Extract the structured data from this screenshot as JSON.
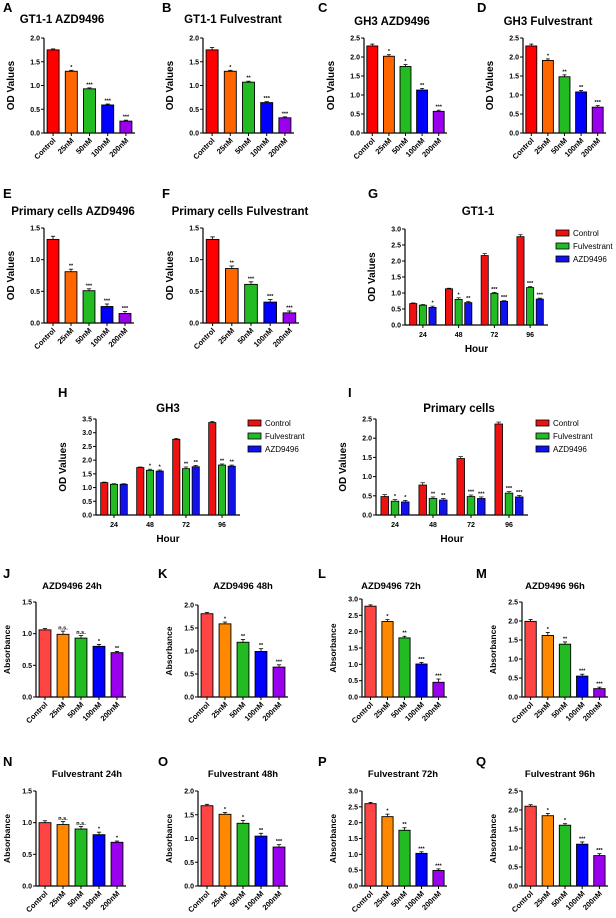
{
  "figure": {
    "colors": {
      "control": "#ff0000",
      "c25": "#ff6600",
      "c50": "#22bb22",
      "c100": "#0000ff",
      "c200": "#9900ee",
      "control_light": "#ff4444",
      "c25_light": "#ff8800",
      "legend_control": "#ee1111",
      "legend_fulvestrant": "#22bb22",
      "legend_azd": "#1111ee"
    }
  },
  "chart_data": [
    {
      "panel": "A",
      "type": "bar",
      "title": "GT1-1 AZD9496",
      "ylabel": "OD Values",
      "xlabel": "",
      "categories": [
        "Control",
        "25nM",
        "50nM",
        "100nM",
        "200nM"
      ],
      "values": [
        1.75,
        1.3,
        0.93,
        0.59,
        0.25
      ],
      "errors": [
        0.02,
        0.02,
        0.02,
        0.02,
        0.02
      ],
      "significance": [
        "",
        "*",
        "***",
        "***",
        "***"
      ],
      "ylim": [
        0,
        2.0
      ],
      "yticks": [
        "0.0",
        "0.5",
        "1.0",
        "1.5",
        "2.0"
      ],
      "grid": false
    },
    {
      "panel": "B",
      "type": "bar",
      "title": "GT1-1 Fulvestrant",
      "ylabel": "OD Values",
      "xlabel": "",
      "categories": [
        "Control",
        "25nM",
        "50nM",
        "100nM",
        "200nM"
      ],
      "values": [
        1.75,
        1.3,
        1.07,
        0.64,
        0.32
      ],
      "errors": [
        0.05,
        0.02,
        0.02,
        0.02,
        0.02
      ],
      "significance": [
        "",
        "*",
        "**",
        "***",
        "***"
      ],
      "ylim": [
        0,
        2.0
      ],
      "yticks": [
        "0.0",
        "0.5",
        "1.0",
        "1.5",
        "2.0"
      ],
      "grid": false
    },
    {
      "panel": "C",
      "type": "bar",
      "title": "GH3 AZD9496",
      "ylabel": "OD Values",
      "xlabel": "",
      "categories": [
        "Control",
        "25nM",
        "50nM",
        "100nM",
        "200nM"
      ],
      "values": [
        2.29,
        2.02,
        1.75,
        1.13,
        0.57
      ],
      "errors": [
        0.05,
        0.04,
        0.05,
        0.04,
        0.03
      ],
      "significance": [
        "",
        "*",
        "*",
        "**",
        "***"
      ],
      "ylim": [
        0,
        2.5
      ],
      "yticks": [
        "0.0",
        "0.5",
        "1.0",
        "1.5",
        "2.0",
        "2.5"
      ],
      "grid": false
    },
    {
      "panel": "D",
      "type": "bar",
      "title": "GH3 Fulvestrant",
      "ylabel": "OD Values",
      "xlabel": "",
      "categories": [
        "Control",
        "25nM",
        "50nM",
        "100nM",
        "200nM"
      ],
      "values": [
        2.29,
        1.91,
        1.48,
        1.08,
        0.68
      ],
      "errors": [
        0.05,
        0.04,
        0.05,
        0.04,
        0.04
      ],
      "significance": [
        "",
        "*",
        "**",
        "**",
        "***"
      ],
      "ylim": [
        0,
        2.5
      ],
      "yticks": [
        "0.0",
        "0.5",
        "1.0",
        "1.5",
        "2.0",
        "2.5"
      ],
      "grid": false
    },
    {
      "panel": "E",
      "type": "bar",
      "title": "Primary cells AZD9496",
      "ylabel": "OD Values",
      "xlabel": "",
      "categories": [
        "Control",
        "25nM",
        "50nM",
        "100nM",
        "200nM"
      ],
      "values": [
        1.32,
        0.81,
        0.51,
        0.26,
        0.15
      ],
      "errors": [
        0.05,
        0.04,
        0.03,
        0.04,
        0.03
      ],
      "significance": [
        "",
        "**",
        "***",
        "***",
        "***"
      ],
      "ylim": [
        0,
        1.5
      ],
      "yticks": [
        "0.0",
        "0.5",
        "1.0",
        "1.5"
      ],
      "grid": false
    },
    {
      "panel": "F",
      "type": "bar",
      "title": "Primary cells Fulvestrant",
      "ylabel": "OD Values",
      "xlabel": "",
      "categories": [
        "Control",
        "25nM",
        "50nM",
        "100nM",
        "200nM"
      ],
      "values": [
        1.32,
        0.86,
        0.61,
        0.33,
        0.16
      ],
      "errors": [
        0.04,
        0.04,
        0.04,
        0.04,
        0.03
      ],
      "significance": [
        "",
        "**",
        "***",
        "***",
        "***"
      ],
      "ylim": [
        0,
        1.5
      ],
      "yticks": [
        "0.0",
        "0.5",
        "1.0",
        "1.5"
      ],
      "grid": false
    },
    {
      "panel": "G",
      "type": "bar",
      "title": "GT1-1",
      "ylabel": "OD Values",
      "xlabel": "Hour",
      "categories": [
        "24",
        "48",
        "72",
        "96"
      ],
      "series": [
        {
          "name": "Control",
          "values": [
            0.67,
            1.13,
            2.17,
            2.76
          ],
          "errors": [
            0.02,
            0.02,
            0.06,
            0.06
          ],
          "significance": [
            "",
            "",
            "",
            ""
          ]
        },
        {
          "name": "Fulvestrant",
          "values": [
            0.62,
            0.8,
            0.99,
            1.17
          ],
          "errors": [
            0.02,
            0.05,
            0.03,
            0.03
          ],
          "significance": [
            "",
            "*",
            "***",
            "***"
          ]
        },
        {
          "name": "AZD9496",
          "values": [
            0.55,
            0.7,
            0.74,
            0.81
          ],
          "errors": [
            0.04,
            0.03,
            0.02,
            0.03
          ],
          "significance": [
            "*",
            "**",
            "***",
            "***"
          ]
        }
      ],
      "ylim": [
        0,
        3.0
      ],
      "yticks": [
        "0.0",
        "0.5",
        "1.0",
        "1.5",
        "2.0",
        "2.5",
        "3.0"
      ],
      "grid": false,
      "legend": "right"
    },
    {
      "panel": "H",
      "type": "bar",
      "title": "GH3",
      "ylabel": "OD Values",
      "xlabel": "Hour",
      "categories": [
        "24",
        "48",
        "72",
        "96"
      ],
      "series": [
        {
          "name": "Control",
          "values": [
            1.18,
            1.73,
            2.76,
            3.37
          ],
          "errors": [
            0.02,
            0.02,
            0.03,
            0.04
          ],
          "significance": [
            "",
            "",
            "",
            ""
          ]
        },
        {
          "name": "Fulvestrant",
          "values": [
            1.12,
            1.63,
            1.69,
            1.82
          ],
          "errors": [
            0.02,
            0.04,
            0.06,
            0.04
          ],
          "significance": [
            "",
            "*",
            "**",
            "**"
          ]
        },
        {
          "name": "AZD9496",
          "values": [
            1.12,
            1.6,
            1.76,
            1.78
          ],
          "errors": [
            0.02,
            0.04,
            0.05,
            0.04
          ],
          "significance": [
            "",
            "*",
            "**",
            "**"
          ]
        }
      ],
      "ylim": [
        0,
        3.5
      ],
      "yticks": [
        "0.0",
        "0.5",
        "1.0",
        "1.5",
        "2.0",
        "2.5",
        "3.0",
        "3.5"
      ],
      "grid": false,
      "legend": "right"
    },
    {
      "panel": "I",
      "type": "bar",
      "title": "Primary cells",
      "ylabel": "OD Values",
      "xlabel": "Hour",
      "categories": [
        "24",
        "48",
        "72",
        "96"
      ],
      "series": [
        {
          "name": "Control",
          "values": [
            0.48,
            0.78,
            1.47,
            2.37
          ],
          "errors": [
            0.05,
            0.06,
            0.05,
            0.05
          ],
          "significance": [
            "",
            "",
            "",
            ""
          ]
        },
        {
          "name": "Fulvestrant",
          "values": [
            0.36,
            0.43,
            0.48,
            0.57
          ],
          "errors": [
            0.04,
            0.04,
            0.04,
            0.04
          ],
          "significance": [
            "*",
            "**",
            "***",
            "***"
          ]
        },
        {
          "name": "AZD9496",
          "values": [
            0.34,
            0.39,
            0.43,
            0.47
          ],
          "errors": [
            0.04,
            0.04,
            0.04,
            0.04
          ],
          "significance": [
            "*",
            "**",
            "***",
            "***"
          ]
        }
      ],
      "ylim": [
        0,
        2.5
      ],
      "yticks": [
        "0.0",
        "0.5",
        "1.0",
        "1.5",
        "2.0",
        "2.5"
      ],
      "grid": false,
      "legend": "right"
    },
    {
      "panel": "J",
      "type": "bar",
      "title": "AZD9496 24h",
      "ylabel": "Absorbance",
      "xlabel": "",
      "categories": [
        "Control",
        "25nM",
        "50nM",
        "100nM",
        "200nM"
      ],
      "values": [
        1.06,
        0.99,
        0.93,
        0.8,
        0.7
      ],
      "errors": [
        0.02,
        0.05,
        0.04,
        0.03,
        0.02
      ],
      "significance": [
        "",
        "n.s.",
        "n.s.",
        "*",
        "**"
      ],
      "ylim": [
        0,
        1.5
      ],
      "yticks": [
        "0.0",
        "0.5",
        "1.0",
        "1.5"
      ],
      "grid": false
    },
    {
      "panel": "K",
      "type": "bar",
      "title": "AZD9496 48h",
      "ylabel": "Absorbance",
      "xlabel": "",
      "categories": [
        "Control",
        "25nM",
        "50nM",
        "100nM",
        "200nM"
      ],
      "values": [
        1.81,
        1.59,
        1.19,
        0.99,
        0.65
      ],
      "errors": [
        0.03,
        0.04,
        0.06,
        0.06,
        0.05
      ],
      "significance": [
        "",
        "*",
        "**",
        "**",
        "***"
      ],
      "ylim": [
        0,
        2.0
      ],
      "yticks": [
        "0.0",
        "0.5",
        "1.0",
        "1.5",
        "2.0"
      ],
      "grid": false
    },
    {
      "panel": "L",
      "type": "bar",
      "title": "AZD9496 72h",
      "ylabel": "Absorbance",
      "xlabel": "",
      "categories": [
        "Control",
        "25nM",
        "50nM",
        "100nM",
        "200nM"
      ],
      "values": [
        2.78,
        2.31,
        1.81,
        1.01,
        0.45
      ],
      "errors": [
        0.04,
        0.06,
        0.05,
        0.05,
        0.1
      ],
      "significance": [
        "",
        "*",
        "**",
        "***",
        "***"
      ],
      "ylim": [
        0,
        3.0
      ],
      "yticks": [
        "0.0",
        "0.5",
        "1.0",
        "1.5",
        "2.0",
        "2.5",
        "3.0"
      ],
      "grid": false
    },
    {
      "panel": "M",
      "type": "bar",
      "title": "AZD9496 96h",
      "ylabel": "Absorbance",
      "xlabel": "",
      "categories": [
        "Control",
        "25nM",
        "50nM",
        "100nM",
        "200nM"
      ],
      "values": [
        1.99,
        1.62,
        1.39,
        0.55,
        0.22
      ],
      "errors": [
        0.05,
        0.08,
        0.06,
        0.05,
        0.04
      ],
      "significance": [
        "",
        "*",
        "**",
        "***",
        "***"
      ],
      "ylim": [
        0,
        2.5
      ],
      "yticks": [
        "0.0",
        "0.5",
        "1.0",
        "1.5",
        "2.0",
        "2.5"
      ],
      "grid": false
    },
    {
      "panel": "N",
      "type": "bar",
      "title": "Fulvestrant 24h",
      "ylabel": "Absorbance",
      "xlabel": "",
      "categories": [
        "Control",
        "25nM",
        "50nM",
        "100nM",
        "200nM"
      ],
      "values": [
        1.0,
        0.97,
        0.9,
        0.81,
        0.69
      ],
      "errors": [
        0.03,
        0.05,
        0.04,
        0.04,
        0.02
      ],
      "significance": [
        "",
        "n.s.",
        "n.s.",
        "*",
        "*"
      ],
      "ylim": [
        0,
        1.5
      ],
      "yticks": [
        "0.0",
        "0.5",
        "1.0",
        "1.5"
      ],
      "grid": false
    },
    {
      "panel": "O",
      "type": "bar",
      "title": "Fulvestrant 48h",
      "ylabel": "Absorbance",
      "xlabel": "",
      "categories": [
        "Control",
        "25nM",
        "50nM",
        "100nM",
        "200nM"
      ],
      "values": [
        1.69,
        1.51,
        1.32,
        1.05,
        0.82
      ],
      "errors": [
        0.03,
        0.04,
        0.06,
        0.06,
        0.05
      ],
      "significance": [
        "",
        "*",
        "*",
        "**",
        "***"
      ],
      "ylim": [
        0,
        2.0
      ],
      "yticks": [
        "0.0",
        "0.5",
        "1.0",
        "1.5",
        "2.0"
      ],
      "grid": false
    },
    {
      "panel": "P",
      "type": "bar",
      "title": "Fulvestrant 72h",
      "ylabel": "Absorbance",
      "xlabel": "",
      "categories": [
        "Control",
        "25nM",
        "50nM",
        "100nM",
        "200nM"
      ],
      "values": [
        2.6,
        2.19,
        1.76,
        1.03,
        0.49
      ],
      "errors": [
        0.04,
        0.08,
        0.08,
        0.05,
        0.05
      ],
      "significance": [
        "",
        "*",
        "**",
        "***",
        "***"
      ],
      "ylim": [
        0,
        3.0
      ],
      "yticks": [
        "0.0",
        "0.5",
        "1.0",
        "1.5",
        "2.0",
        "2.5",
        "3.0"
      ],
      "grid": false
    },
    {
      "panel": "Q",
      "type": "bar",
      "title": "Fulvestrant 96h",
      "ylabel": "Absorbance",
      "xlabel": "",
      "categories": [
        "Control",
        "25nM",
        "50nM",
        "100nM",
        "200nM"
      ],
      "values": [
        2.1,
        1.85,
        1.6,
        1.1,
        0.8
      ],
      "errors": [
        0.04,
        0.06,
        0.04,
        0.06,
        0.05
      ],
      "significance": [
        "",
        "*",
        "*",
        "***",
        "***"
      ],
      "ylim": [
        0,
        2.5
      ],
      "yticks": [
        "0.0",
        "0.5",
        "1.0",
        "1.5",
        "2.0",
        "2.5"
      ],
      "grid": false
    }
  ]
}
